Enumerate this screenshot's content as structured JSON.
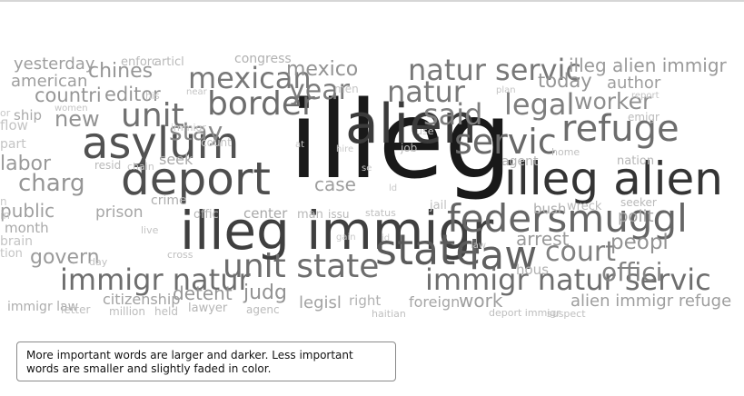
{
  "legend": {
    "text": "More important words are larger and darker. Less important words are smaller and slightly faded in color."
  },
  "words": [
    {
      "text": "illeg",
      "weight": 1.0
    },
    {
      "text": "illeg alien",
      "weight": 0.86
    },
    {
      "text": "alien",
      "weight": 0.82
    },
    {
      "text": "illeg immigr",
      "weight": 0.8
    },
    {
      "text": "deport",
      "weight": 0.72
    },
    {
      "text": "asylum",
      "weight": 0.7
    },
    {
      "text": "state",
      "weight": 0.66
    },
    {
      "text": "law",
      "weight": 0.62
    },
    {
      "text": "federsmuggl",
      "weight": 0.6
    },
    {
      "text": "servic",
      "weight": 0.58
    },
    {
      "text": "refuge",
      "weight": 0.56
    },
    {
      "text": "unit state",
      "weight": 0.56
    },
    {
      "text": "border",
      "weight": 0.56
    },
    {
      "text": "immigr natur",
      "weight": 0.55
    },
    {
      "text": "immigr natur servic",
      "weight": 0.55
    },
    {
      "text": "unit",
      "weight": 0.54
    },
    {
      "text": "mexican",
      "weight": 0.5
    },
    {
      "text": "natur servic",
      "weight": 0.5
    },
    {
      "text": "natur",
      "weight": 0.5
    },
    {
      "text": "year",
      "weight": 0.48
    },
    {
      "text": "legal",
      "weight": 0.47
    },
    {
      "text": "said",
      "weight": 0.47
    },
    {
      "text": "court",
      "weight": 0.46
    },
    {
      "text": "offici",
      "weight": 0.44
    },
    {
      "text": "stay",
      "weight": 0.42
    },
    {
      "text": "worker",
      "weight": 0.38
    },
    {
      "text": "peopl",
      "weight": 0.36
    },
    {
      "text": "judg",
      "weight": 0.36
    },
    {
      "text": "detent",
      "weight": 0.34
    },
    {
      "text": "mexico",
      "weight": 0.36
    },
    {
      "text": "new",
      "weight": 0.36
    },
    {
      "text": "chines",
      "weight": 0.34
    },
    {
      "text": "countri",
      "weight": 0.34
    },
    {
      "text": "editor",
      "weight": 0.34
    },
    {
      "text": "today",
      "weight": 0.34
    },
    {
      "text": "illeg alien immigr",
      "weight": 0.32
    },
    {
      "text": "alien immigr refuge",
      "weight": 0.3
    },
    {
      "text": "govern",
      "weight": 0.32
    },
    {
      "text": "charg",
      "weight": 0.34
    },
    {
      "text": "arrest",
      "weight": 0.32
    },
    {
      "text": "author",
      "weight": 0.3
    },
    {
      "text": "labor",
      "weight": 0.32
    },
    {
      "text": "public",
      "weight": 0.3
    },
    {
      "text": "yesterday",
      "weight": 0.3
    },
    {
      "text": "american",
      "weight": 0.3
    },
    {
      "text": "case",
      "weight": 0.3
    },
    {
      "text": "work",
      "weight": 0.3
    },
    {
      "text": "polit",
      "weight": 0.28
    },
    {
      "text": "legisl",
      "weight": 0.28
    },
    {
      "text": "citizenship",
      "weight": 0.28
    },
    {
      "text": "prison",
      "weight": 0.26
    },
    {
      "text": "foreign",
      "weight": 0.26
    },
    {
      "text": "ship",
      "weight": 0.24
    },
    {
      "text": "month",
      "weight": 0.24
    },
    {
      "text": "crime",
      "weight": 0.22
    },
    {
      "text": "seek",
      "weight": 0.24
    },
    {
      "text": "center",
      "weight": 0.24
    },
    {
      "text": "right",
      "weight": 0.2
    },
    {
      "text": "immigr law",
      "weight": 0.22
    },
    {
      "text": "bush",
      "weight": 0.22
    },
    {
      "text": "congress",
      "weight": 0.2
    },
    {
      "text": "hous",
      "weight": 0.2
    },
    {
      "text": "lawyer",
      "weight": 0.18
    },
    {
      "text": "nation",
      "weight": 0.18
    },
    {
      "text": "agent",
      "weight": 0.18
    },
    {
      "text": "offic",
      "weight": 0.17
    },
    {
      "text": "man",
      "weight": 0.17
    },
    {
      "text": "issu",
      "weight": 0.16
    },
    {
      "text": "resid",
      "weight": 0.16
    },
    {
      "text": "seeker",
      "weight": 0.16
    },
    {
      "text": "enforc",
      "weight": 0.16
    },
    {
      "text": "articl",
      "weight": 0.16
    },
    {
      "text": "wreck",
      "weight": 0.16
    },
    {
      "text": "emigr",
      "weight": 0.15
    },
    {
      "text": "job",
      "weight": 0.15
    },
    {
      "text": "agenc",
      "weight": 0.15
    },
    {
      "text": "held",
      "weight": 0.14
    },
    {
      "text": "million",
      "weight": 0.14
    },
    {
      "text": "letter",
      "weight": 0.13
    },
    {
      "text": "deport immigr",
      "weight": 0.13
    },
    {
      "text": "suspect",
      "weight": 0.12
    },
    {
      "text": "haitian",
      "weight": 0.12
    },
    {
      "text": "home",
      "weight": 0.12
    },
    {
      "text": "status",
      "weight": 0.12
    },
    {
      "text": "cross",
      "weight": 0.12
    },
    {
      "text": "day",
      "weight": 0.12
    },
    {
      "text": "women",
      "weight": 0.1
    },
    {
      "text": "report",
      "weight": 0.1
    },
    {
      "text": "plan",
      "weight": 0.1
    },
    {
      "text": "near",
      "weight": 0.1
    },
    {
      "text": "live",
      "weight": 0.1
    },
    {
      "text": "chain",
      "weight": 0.1
    },
    {
      "text": "jail",
      "weight": 0.12
    },
    {
      "text": "flow",
      "weight": 0.1
    },
    {
      "text": "part",
      "weight": 0.1
    },
    {
      "text": "brain",
      "weight": 0.1
    },
    {
      "text": "tion",
      "weight": 0.1
    },
    {
      "text": "immigr",
      "weight": 0.09
    },
    {
      "text": "count",
      "weight": 0.09
    },
    {
      "text": "his",
      "weight": 0.09
    },
    {
      "text": "men",
      "weight": 0.09
    },
    {
      "text": "use",
      "weight": 0.08
    },
    {
      "text": "hire",
      "weight": 0.08
    },
    {
      "text": "at",
      "weight": 0.08
    },
    {
      "text": "se",
      "weight": 0.08
    },
    {
      "text": "ld",
      "weight": 0.08
    },
    {
      "text": "gain",
      "weight": 0.08
    },
    {
      "text": "id",
      "weight": 0.08
    },
    {
      "text": "law",
      "weight": 0.08
    },
    {
      "text": "or",
      "weight": 0.08
    },
    {
      "text": "n",
      "weight": 0.08
    },
    {
      "text": "in",
      "weight": 0.08
    }
  ]
}
